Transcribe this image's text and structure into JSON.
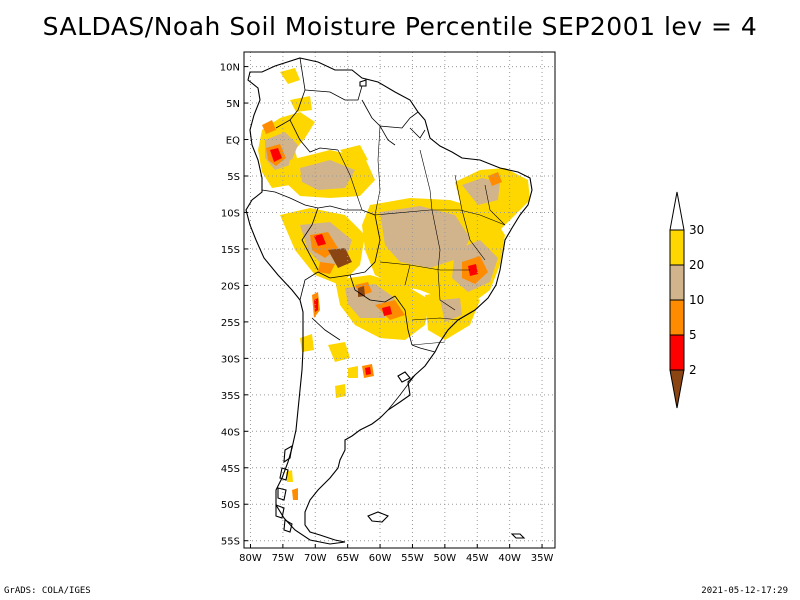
{
  "title": "SALDAS/Noah Soil Moisture Percentile SEP2001 lev = 4",
  "map": {
    "lon_labels": [
      "80W",
      "75W",
      "70W",
      "65W",
      "60W",
      "55W",
      "50W",
      "45W",
      "40W",
      "35W"
    ],
    "lat_labels": [
      "10N",
      "5N",
      "EQ",
      "5S",
      "10S",
      "15S",
      "20S",
      "25S",
      "30S",
      "35S",
      "40S",
      "45S",
      "50S",
      "55S"
    ],
    "lon_range": [
      -81,
      -33
    ],
    "lat_range": [
      -56,
      12
    ],
    "grid": "dotted",
    "coastline_color": "#000000"
  },
  "colorbar": {
    "labels": [
      "2",
      "5",
      "10",
      "20",
      "30"
    ],
    "colors": [
      "#8b4513",
      "#ff0000",
      "#ff8c00",
      "#d2b48c",
      "#ffd700",
      "#ffffff"
    ]
  },
  "footer": {
    "left": "GrADS: COLA/IGES",
    "right": "2021-05-12-17:29"
  }
}
